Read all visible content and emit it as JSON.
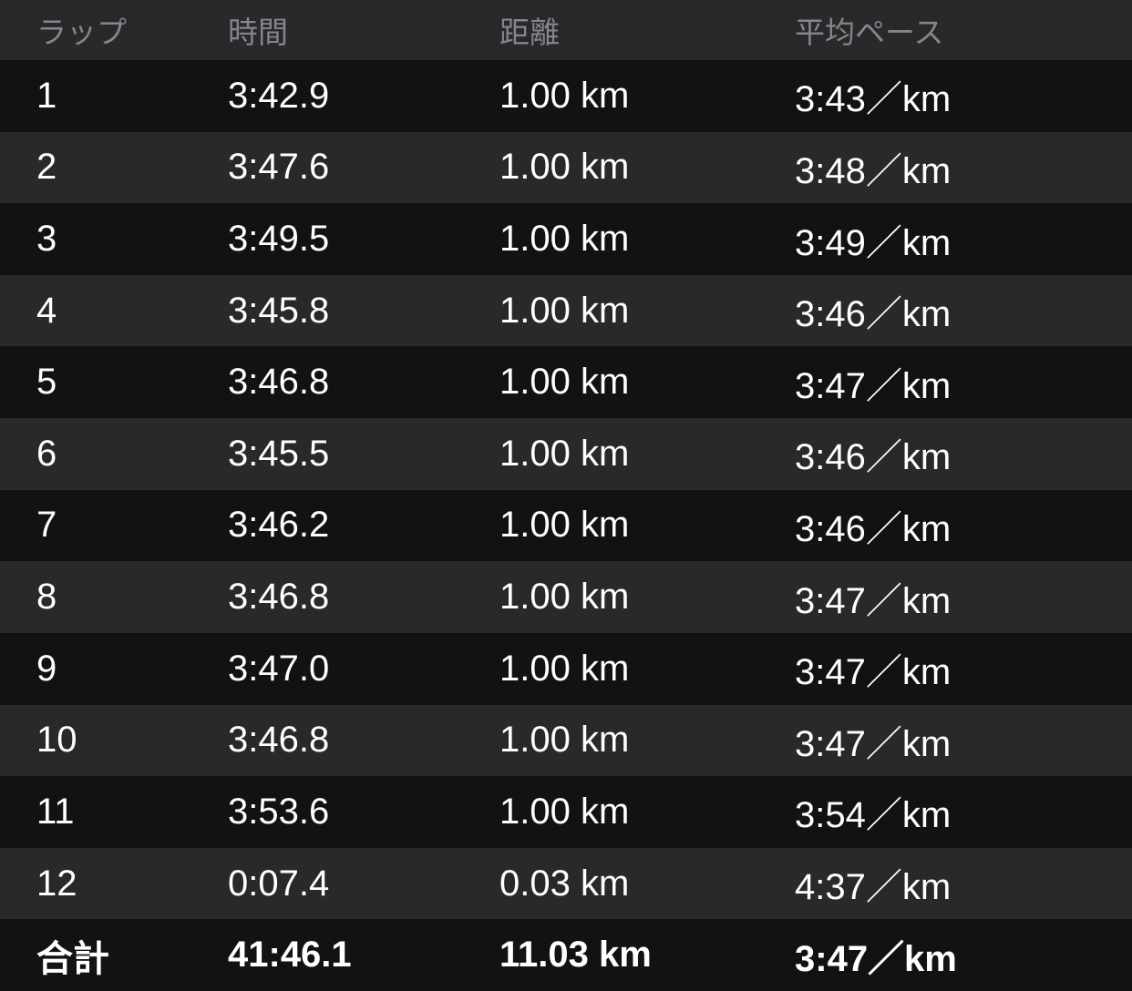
{
  "colors": {
    "row_dark": "#121214",
    "row_light": "#29292b",
    "header_bg": "#29292b",
    "header_text": "#85858a",
    "body_text": "#ffffff"
  },
  "table": {
    "columns": {
      "lap": "ラップ",
      "time": "時間",
      "distance": "距離",
      "pace": "平均ペース"
    },
    "rows": [
      {
        "lap": "1",
        "time": "3:42.9",
        "distance": "1.00 km",
        "pace": "3:43／km"
      },
      {
        "lap": "2",
        "time": "3:47.6",
        "distance": "1.00 km",
        "pace": "3:48／km"
      },
      {
        "lap": "3",
        "time": "3:49.5",
        "distance": "1.00 km",
        "pace": "3:49／km"
      },
      {
        "lap": "4",
        "time": "3:45.8",
        "distance": "1.00 km",
        "pace": "3:46／km"
      },
      {
        "lap": "5",
        "time": "3:46.8",
        "distance": "1.00 km",
        "pace": "3:47／km"
      },
      {
        "lap": "6",
        "time": "3:45.5",
        "distance": "1.00 km",
        "pace": "3:46／km"
      },
      {
        "lap": "7",
        "time": "3:46.2",
        "distance": "1.00 km",
        "pace": "3:46／km"
      },
      {
        "lap": "8",
        "time": "3:46.8",
        "distance": "1.00 km",
        "pace": "3:47／km"
      },
      {
        "lap": "9",
        "time": "3:47.0",
        "distance": "1.00 km",
        "pace": "3:47／km"
      },
      {
        "lap": "10",
        "time": "3:46.8",
        "distance": "1.00 km",
        "pace": "3:47／km"
      },
      {
        "lap": "11",
        "time": "3:53.6",
        "distance": "1.00 km",
        "pace": "3:54／km"
      },
      {
        "lap": "12",
        "time": "0:07.4",
        "distance": "0.03 km",
        "pace": "4:37／km"
      }
    ],
    "total": {
      "lap": "合計",
      "time": "41:46.1",
      "distance": "11.03 km",
      "pace": "3:47／km"
    }
  }
}
